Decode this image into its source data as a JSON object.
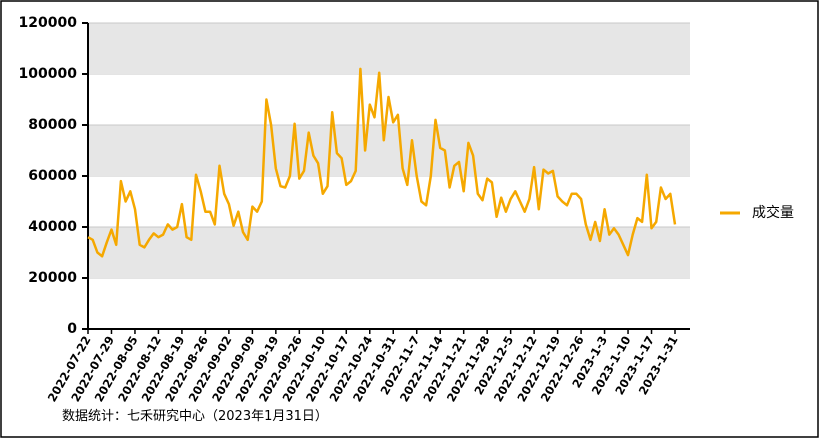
{
  "chart_data": {
    "type": "line",
    "categories": [
      "2022-07-22",
      null,
      null,
      null,
      null,
      "2022-07-29",
      null,
      null,
      null,
      null,
      "2022-08-05",
      null,
      null,
      null,
      null,
      "2022-08-12",
      null,
      null,
      null,
      null,
      "2022-08-19",
      null,
      null,
      null,
      null,
      "2022-08-26",
      null,
      null,
      null,
      null,
      "2022-09-02",
      null,
      null,
      null,
      null,
      "2022-09-09",
      null,
      null,
      null,
      null,
      "2022-09-19",
      null,
      null,
      null,
      null,
      "2022-09-26",
      null,
      null,
      null,
      null,
      "2022-10-10",
      null,
      null,
      null,
      null,
      "2022-10-17",
      null,
      null,
      null,
      null,
      "2022-10-24",
      null,
      null,
      null,
      null,
      "2022-10-31",
      null,
      null,
      null,
      null,
      "2022-11-7",
      null,
      null,
      null,
      null,
      "2022-11-14",
      null,
      null,
      null,
      null,
      "2022-11-21",
      null,
      null,
      null,
      null,
      "2022-11-28",
      null,
      null,
      null,
      null,
      "2022-12-5",
      null,
      null,
      null,
      null,
      "2022-12-12",
      null,
      null,
      null,
      null,
      "2022-12-19",
      null,
      null,
      null,
      null,
      "2022-12-26",
      null,
      null,
      null,
      null,
      "2023-1-3",
      null,
      null,
      null,
      null,
      "2023-1-10",
      null,
      null,
      null,
      null,
      "2023-1-17",
      null,
      null,
      null,
      null,
      "2023-1-31"
    ],
    "series": [
      {
        "name": "成交量",
        "color": "#f5a800",
        "values": [
          36000,
          35000,
          30000,
          28500,
          34000,
          39000,
          33000,
          58000,
          50000,
          54000,
          47000,
          33000,
          32000,
          35000,
          37500,
          36000,
          37000,
          41000,
          39000,
          40000,
          49000,
          36000,
          35000,
          60500,
          54000,
          46000,
          46000,
          41000,
          64000,
          53000,
          49000,
          40500,
          46000,
          38000,
          35000,
          48000,
          46000,
          50000,
          90000,
          80000,
          63000,
          56000,
          55500,
          60000,
          80500,
          59000,
          62000,
          77000,
          68000,
          65000,
          53000,
          56000,
          85000,
          69000,
          67000,
          56500,
          58000,
          62000,
          102000,
          70000,
          88000,
          83000,
          100500,
          74000,
          91000,
          81000,
          84000,
          63000,
          56500,
          74000,
          60000,
          50000,
          48500,
          60000,
          82000,
          71000,
          70000,
          55500,
          64000,
          65500,
          54000,
          73000,
          68000,
          53000,
          50500,
          59000,
          57500,
          44000,
          51500,
          46000,
          51000,
          54000,
          50000,
          46000,
          51000,
          63500,
          47000,
          62500,
          61000,
          62000,
          52000,
          50000,
          48500,
          53000,
          53000,
          51000,
          41000,
          35000,
          42000,
          34500,
          47000,
          37000,
          39500,
          37000,
          33000,
          29000,
          37000,
          43500,
          42000,
          60500,
          39500,
          42000,
          55500,
          51000,
          53000,
          41000
        ]
      }
    ],
    "ylim": [
      0,
      120000
    ],
    "yticks": [
      0,
      20000,
      40000,
      60000,
      80000,
      100000,
      120000
    ],
    "grid": true,
    "legend": "right",
    "source": "数据统计：七禾研究中心（2023年1月31日）"
  }
}
